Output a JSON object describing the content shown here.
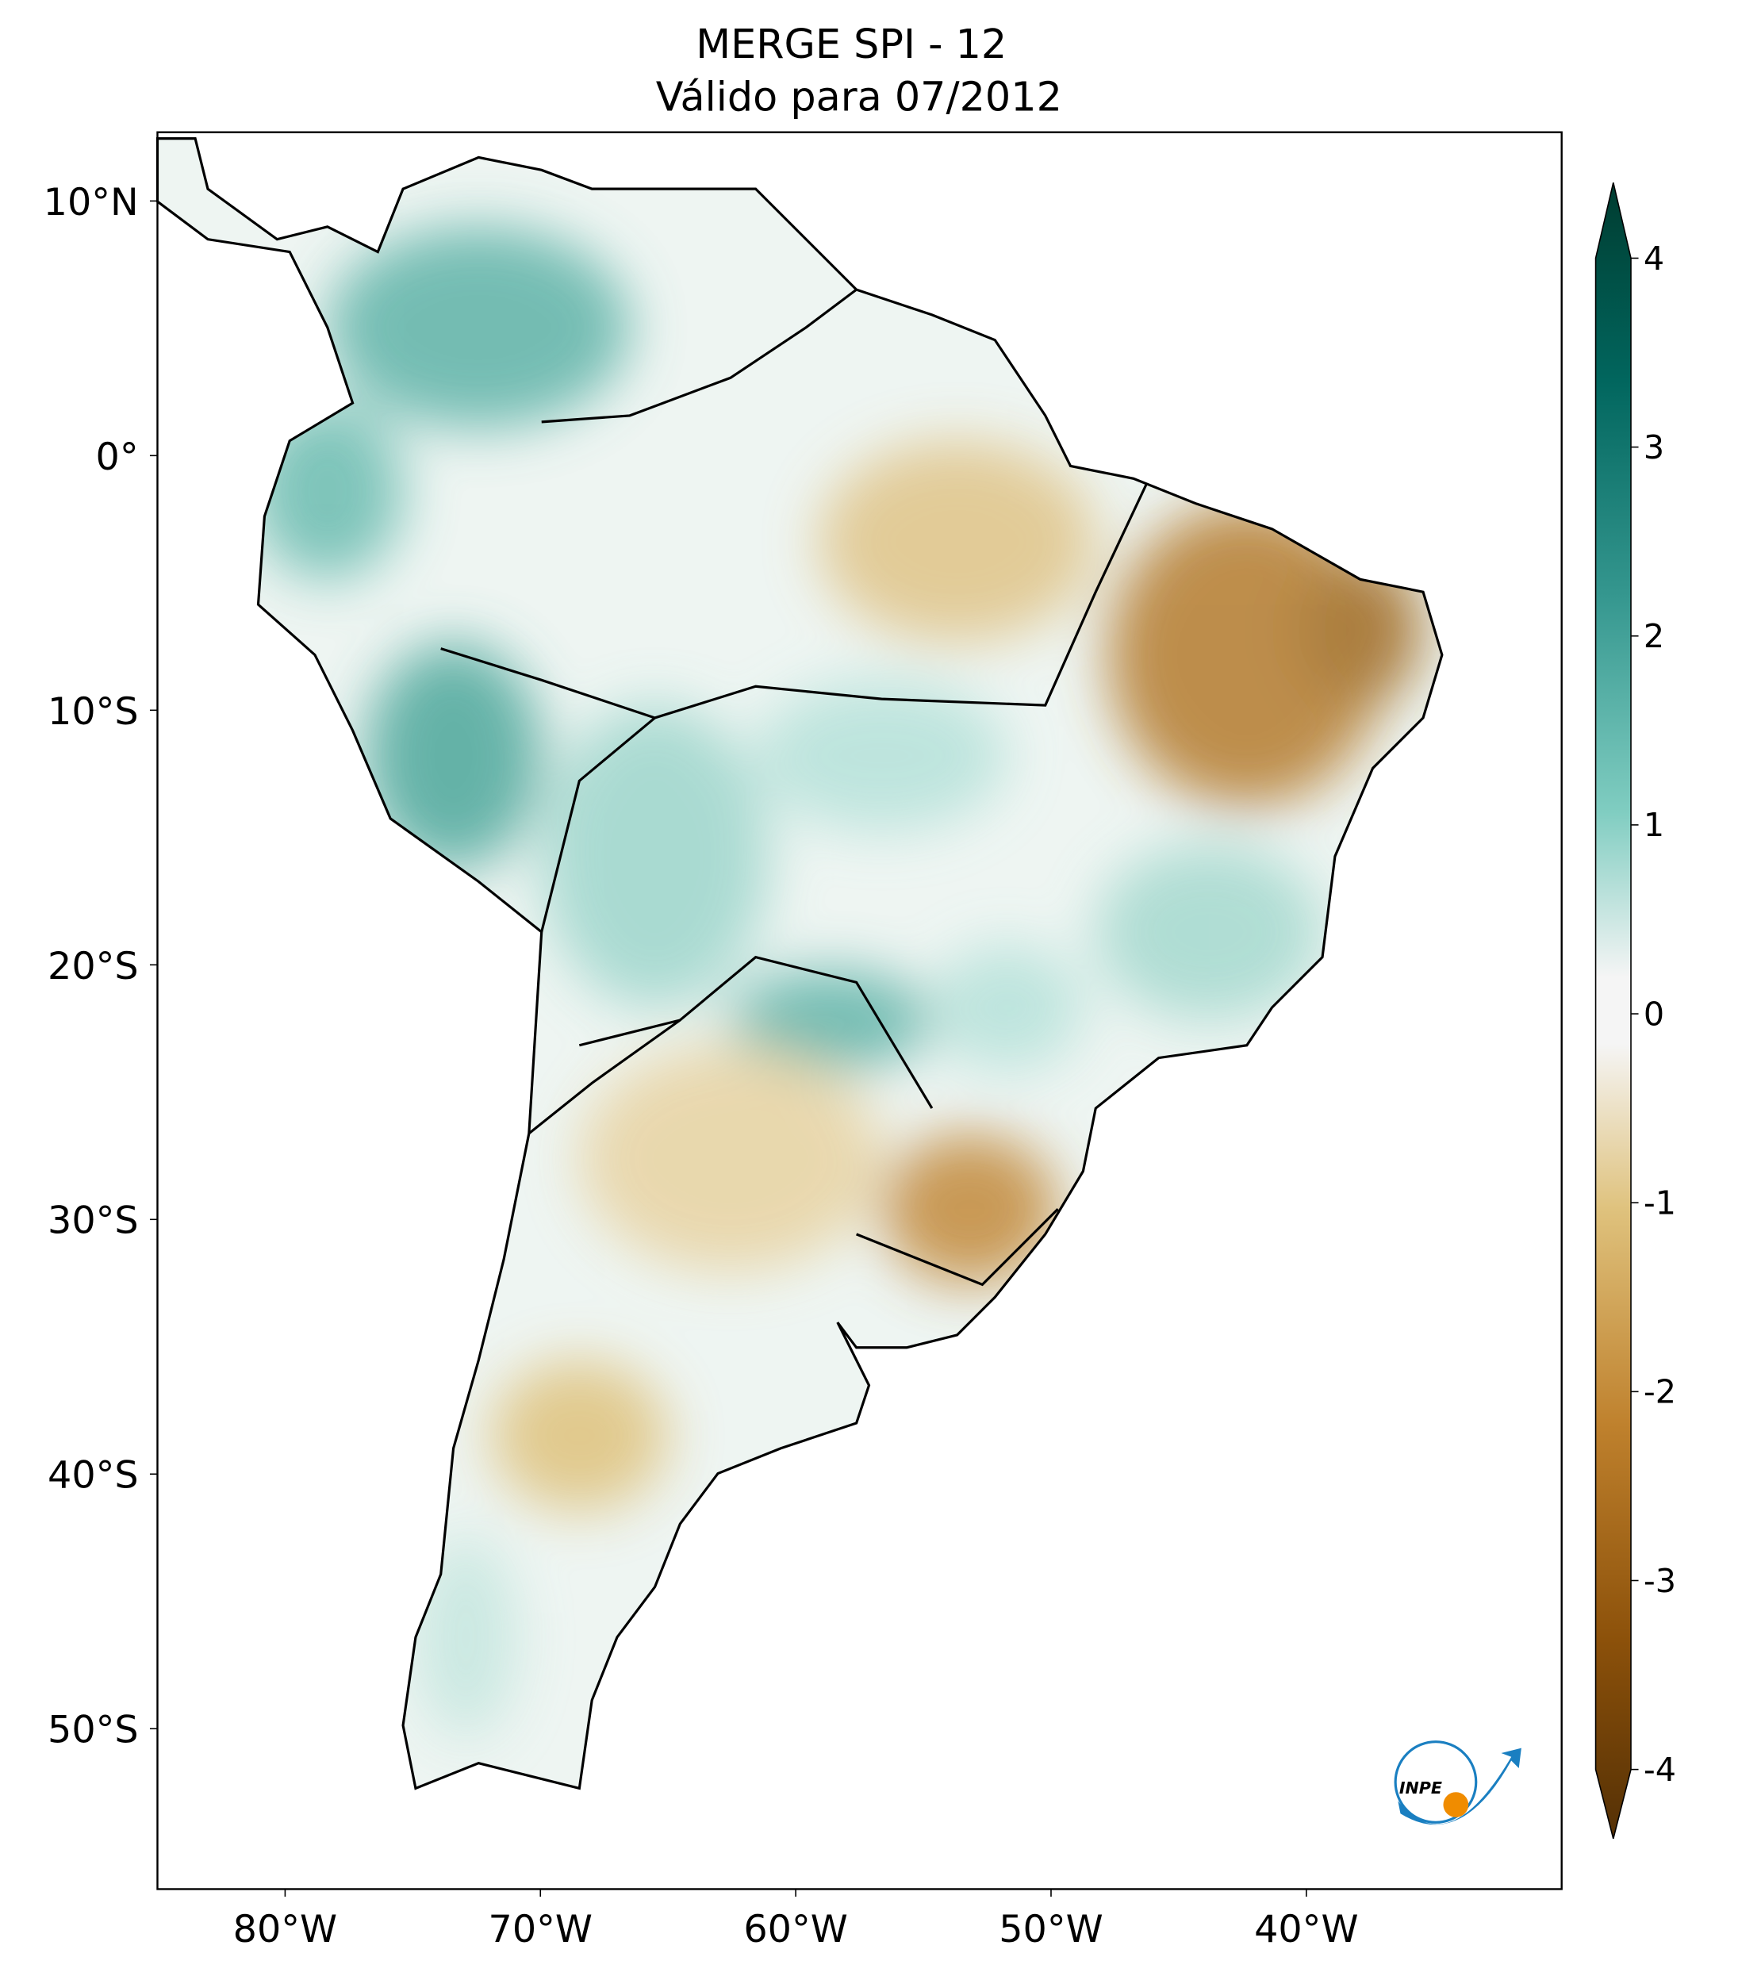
{
  "map": {
    "title": "MERGE   SPI - 12",
    "subtitle": "Válido para 07/2012",
    "xlim": [
      -85,
      -30
    ],
    "ylim": [
      -56.3,
      12.7
    ],
    "xticks": [
      {
        "value": -80,
        "label": "80°W"
      },
      {
        "value": -70,
        "label": "70°W"
      },
      {
        "value": -60,
        "label": "60°W"
      },
      {
        "value": -50,
        "label": "50°W"
      },
      {
        "value": -40,
        "label": "40°W"
      }
    ],
    "yticks": [
      {
        "value": 10,
        "label": "10°N"
      },
      {
        "value": 0,
        "label": "0°"
      },
      {
        "value": -10,
        "label": "10°S"
      },
      {
        "value": -20,
        "label": "20°S"
      },
      {
        "value": -30,
        "label": "30°S"
      },
      {
        "value": -40,
        "label": "40°S"
      },
      {
        "value": -50,
        "label": "50°S"
      }
    ],
    "colorbar": {
      "lim": [
        -4,
        4
      ],
      "ticks": [
        4,
        3,
        2,
        1,
        0,
        -1,
        -2,
        -3,
        -4
      ]
    },
    "logo": "INPE"
  }
}
